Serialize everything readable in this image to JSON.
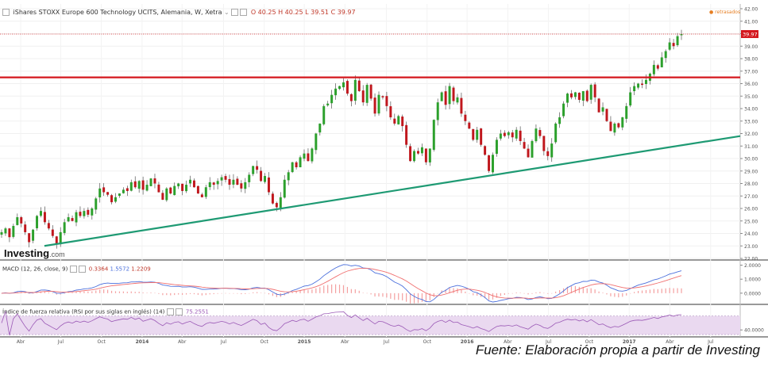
{
  "header": {
    "title": "iShares STOXX Europe 600 Technology UCITS, Alemania, W, Xetra",
    "ohlc": "O 40.25  H 40.25  L 39.51  C 39.97",
    "delayed": "retrasados"
  },
  "logo": {
    "main": "Investing",
    "suffix": ".com"
  },
  "caption": "Fuente: Elaboración propia a partir de Investing",
  "colors": {
    "up": "#2ca02c",
    "down": "#c0171d",
    "resistance": "#d4171d",
    "trendline": "#1e9a73",
    "macd_line": "#4a6fdc",
    "signal_line": "#f07070",
    "rsi_line": "#9b59b6",
    "rsi_band": "#ead9f0",
    "price_label_bg": "#d4171d"
  },
  "chart_data": [
    {
      "type": "candlestick",
      "interval": "weekly",
      "ylim": [
        22.0,
        42.0
      ],
      "y_ticks": [
        "42.00",
        "41.00",
        "40.00",
        "39.00",
        "38.00",
        "37.00",
        "36.00",
        "35.00",
        "34.00",
        "33.00",
        "32.00",
        "31.00",
        "30.00",
        "29.00",
        "28.00",
        "27.00",
        "26.00",
        "25.00",
        "24.00",
        "23.00",
        "22.00"
      ],
      "last_price_label": "39.97",
      "last_price": 39.97,
      "resistance_level": 36.5,
      "trendline": {
        "start": [
          0.06,
          23.0
        ],
        "end": [
          1.0,
          31.8
        ]
      },
      "x_ticks": [
        "Abr",
        "Jul",
        "Oct",
        "2014",
        "Abr",
        "Jul",
        "Oct",
        "2015",
        "Abr",
        "Jul",
        "Oct",
        "2016",
        "Abr",
        "Jul",
        "Oct",
        "2017",
        "Abr",
        "Jul"
      ],
      "x_tick_pos": [
        0.028,
        0.082,
        0.137,
        0.192,
        0.246,
        0.302,
        0.357,
        0.411,
        0.466,
        0.522,
        0.577,
        0.631,
        0.686,
        0.741,
        0.796,
        0.85,
        0.905,
        0.96
      ],
      "closes": [
        24.1,
        24.4,
        23.7,
        24.6,
        25.3,
        24.8,
        24.1,
        23.3,
        24.3,
        25.4,
        25.8,
        24.9,
        24.4,
        23.8,
        23.2,
        24.1,
        24.9,
        25.3,
        25.0,
        25.7,
        25.4,
        25.8,
        25.5,
        26.0,
        26.8,
        27.6,
        27.3,
        27.1,
        26.5,
        26.9,
        27.2,
        27.5,
        27.4,
        28.1,
        27.7,
        28.2,
        27.5,
        27.9,
        28.4,
        28.0,
        27.3,
        26.7,
        27.6,
        27.2,
        27.8,
        28.0,
        27.4,
        27.9,
        28.3,
        27.7,
        27.2,
        26.9,
        27.7,
        28.1,
        27.9,
        28.2,
        28.5,
        28.3,
        27.9,
        28.3,
        27.9,
        27.6,
        28.1,
        28.7,
        29.4,
        29.1,
        28.2,
        28.6,
        27.3,
        26.4,
        26.1,
        26.9,
        28.3,
        28.9,
        29.7,
        29.3,
        30.1,
        30.4,
        29.8,
        30.8,
        32.0,
        32.8,
        34.2,
        34.4,
        35.1,
        35.6,
        35.8,
        36.1,
        35.2,
        34.6,
        36.3,
        35.4,
        34.5,
        35.9,
        34.8,
        33.6,
        35.1,
        34.9,
        34.2,
        33.3,
        32.8,
        33.4,
        32.6,
        31.1,
        29.8,
        30.6,
        30.4,
        30.9,
        29.7,
        30.8,
        33.1,
        34.5,
        35.3,
        34.3,
        35.8,
        34.6,
        34.9,
        33.6,
        33.0,
        32.4,
        31.5,
        32.3,
        31.1,
        30.3,
        29.0,
        30.3,
        31.5,
        32.0,
        31.8,
        32.1,
        31.7,
        32.3,
        31.4,
        30.8,
        30.1,
        31.4,
        32.4,
        31.8,
        30.6,
        30.2,
        31.2,
        32.8,
        33.3,
        34.4,
        35.2,
        34.9,
        35.3,
        34.7,
        35.4,
        34.6,
        35.9,
        34.9,
        33.7,
        34.1,
        33.0,
        32.2,
        32.8,
        32.5,
        33.3,
        34.2,
        35.3,
        35.8,
        36.0,
        35.9,
        36.3,
        36.8,
        37.5,
        37.2,
        38.1,
        38.6,
        39.3,
        39.0,
        39.8,
        39.97
      ],
      "date_range": [
        "2013-01",
        "2017-04"
      ]
    },
    {
      "type": "line",
      "name": "MACD",
      "label": "MACD (12, 26, close, 9)",
      "values_text": [
        "0.3364",
        "1.5572",
        "1.2209"
      ],
      "ylim": [
        -0.8,
        2.2
      ],
      "y_ticks": [
        "2.0000",
        "1.0000",
        "0.0000"
      ],
      "series": [
        {
          "name": "histogram",
          "last": 0.3364
        },
        {
          "name": "macd",
          "last": 1.5572
        },
        {
          "name": "signal",
          "last": 1.2209
        }
      ]
    },
    {
      "type": "line",
      "name": "RSI",
      "label": "Índice de fuerza relativa (RSI por sus siglas en inglés) (14)",
      "value_text": "75.2551",
      "ylim": [
        25,
        90
      ],
      "y_ticks": [
        "40.0000"
      ],
      "band": [
        30,
        70
      ]
    }
  ]
}
